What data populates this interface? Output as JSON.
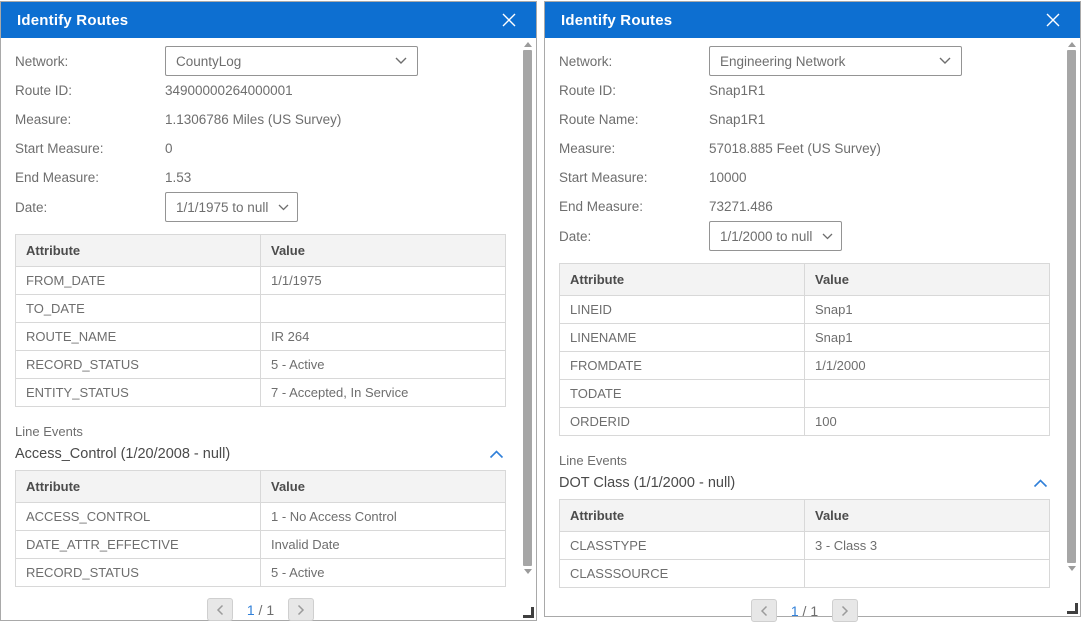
{
  "colors": {
    "titlebar-bg": "#0d6fd1",
    "titlebar-text": "#ffffff",
    "accent-blue": "#3180d9",
    "label-text": "#6e6e6e",
    "section-title-text": "#4a4a4a",
    "table-header-bg": "#f3f3f3",
    "table-header-text": "#4c4c4c",
    "table-border": "#d8d8d8",
    "panel-border": "#a9a9a9",
    "select-border": "#949494",
    "scrollbar-thumb": "#a6a6a6",
    "pager-btn-bg": "#e7e7e7",
    "pager-btn-border": "#cfcfcf",
    "pager-icon": "#9b9b9b"
  },
  "panels": [
    {
      "title": "Identify Routes",
      "fields": {
        "network": {
          "label": "Network:",
          "value": "CountyLog"
        },
        "route_id": {
          "label": "Route ID:",
          "value": "34900000264000001"
        },
        "measure": {
          "label": "Measure:",
          "value": "1.1306786 Miles (US Survey)"
        },
        "start_measure": {
          "label": "Start Measure:",
          "value": "0"
        },
        "end_measure": {
          "label": "End Measure:",
          "value": "1.53"
        },
        "date": {
          "label": "Date:",
          "value": "1/1/1975 to null"
        }
      },
      "attribute_table": {
        "headers": [
          "Attribute",
          "Value"
        ],
        "rows": [
          [
            "FROM_DATE",
            "1/1/1975"
          ],
          [
            "TO_DATE",
            ""
          ],
          [
            "ROUTE_NAME",
            "IR 264"
          ],
          [
            "RECORD_STATUS",
            "5 - Active"
          ],
          [
            "ENTITY_STATUS",
            "7 - Accepted, In Service"
          ]
        ]
      },
      "line_events_label": "Line Events",
      "event_section_title": "Access_Control (1/20/2008 - null)",
      "event_table": {
        "headers": [
          "Attribute",
          "Value"
        ],
        "rows": [
          [
            "ACCESS_CONTROL",
            "1 - No Access Control"
          ],
          [
            "DATE_ATTR_EFFECTIVE",
            "Invalid Date"
          ],
          [
            "RECORD_STATUS",
            "5 - Active"
          ]
        ]
      },
      "pagination": {
        "current": "1",
        "separator": "/",
        "total": "1"
      }
    },
    {
      "title": "Identify Routes",
      "fields": {
        "network": {
          "label": "Network:",
          "value": "Engineering Network"
        },
        "route_id": {
          "label": "Route ID:",
          "value": "Snap1R1"
        },
        "route_name": {
          "label": "Route Name:",
          "value": "Snap1R1"
        },
        "measure": {
          "label": "Measure:",
          "value": "57018.885 Feet (US Survey)"
        },
        "start_measure": {
          "label": "Start Measure:",
          "value": "10000"
        },
        "end_measure": {
          "label": "End Measure:",
          "value": "73271.486"
        },
        "date": {
          "label": "Date:",
          "value": "1/1/2000 to null"
        }
      },
      "attribute_table": {
        "headers": [
          "Attribute",
          "Value"
        ],
        "rows": [
          [
            "LINEID",
            "Snap1"
          ],
          [
            "LINENAME",
            "Snap1"
          ],
          [
            "FROMDATE",
            "1/1/2000"
          ],
          [
            "TODATE",
            ""
          ],
          [
            "ORDERID",
            "100"
          ]
        ]
      },
      "line_events_label": "Line Events",
      "event_section_title": "DOT Class (1/1/2000 - null)",
      "event_table": {
        "headers": [
          "Attribute",
          "Value"
        ],
        "rows": [
          [
            "CLASSTYPE",
            "3 - Class 3"
          ],
          [
            "CLASSSOURCE",
            ""
          ]
        ]
      },
      "pagination": {
        "current": "1",
        "separator": "/",
        "total": "1"
      }
    }
  ]
}
